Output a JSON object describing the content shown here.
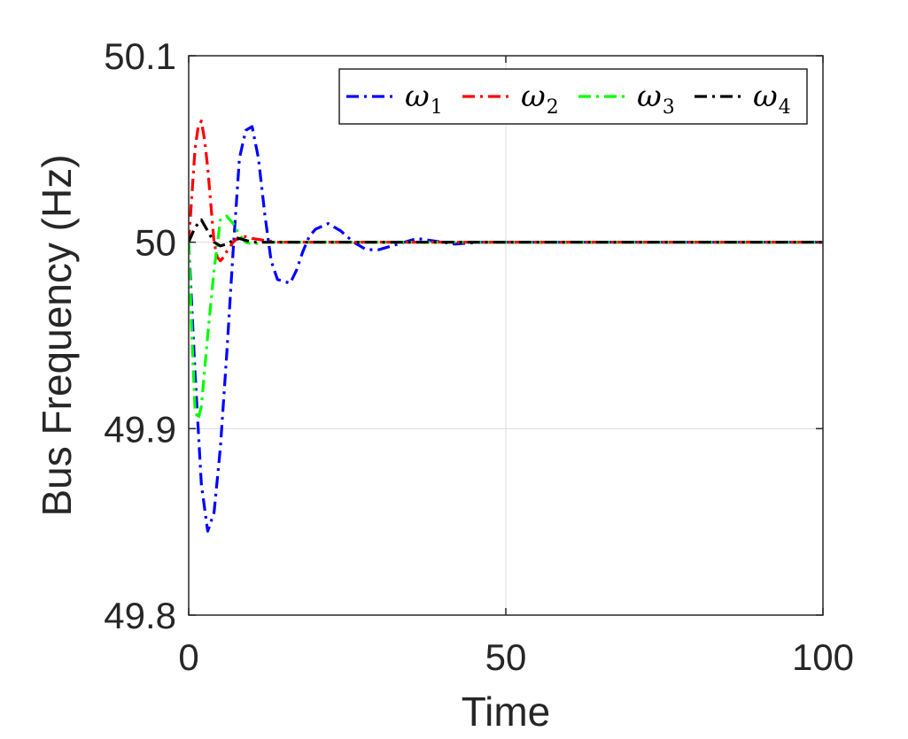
{
  "chart_data": {
    "type": "line",
    "title": "",
    "xlabel": "Time",
    "ylabel": "Bus Frequency (Hz)",
    "xlim": [
      0,
      100
    ],
    "ylim": [
      49.8,
      50.1
    ],
    "xticks": [
      0,
      50,
      100
    ],
    "xtick_labels": [
      "0",
      "50",
      "100"
    ],
    "yticks": [
      49.8,
      49.9,
      50,
      50.1
    ],
    "ytick_labels": [
      "49.8",
      "49.9",
      "50",
      "50.1"
    ],
    "grid": true,
    "legend_position": "top-right",
    "legend_orientation": "horizontal",
    "series": [
      {
        "name": "ω1",
        "name_base": "ω",
        "name_sub": "1",
        "color": "#0000ff",
        "dash": "dash-dot",
        "x": [
          0,
          1,
          2,
          3,
          4,
          5,
          6,
          7,
          8,
          9,
          10,
          11,
          12,
          13,
          14,
          15,
          16,
          17,
          18,
          19,
          20,
          22,
          24,
          26,
          28,
          30,
          32,
          34,
          36,
          38,
          40,
          42,
          44,
          46,
          48,
          50,
          60,
          70,
          80,
          90,
          100
        ],
        "y": [
          50,
          49.93,
          49.87,
          49.845,
          49.855,
          49.89,
          49.94,
          49.995,
          50.045,
          50.06,
          50.062,
          50.045,
          50.015,
          49.99,
          49.98,
          49.979,
          49.978,
          49.985,
          49.995,
          50.003,
          50.007,
          50.01,
          50.006,
          50.0,
          49.996,
          49.996,
          49.998,
          50.0,
          50.002,
          50.001,
          50.0,
          49.999,
          49.9995,
          50.0,
          50.0,
          50.0,
          50.0,
          50.0,
          50.0,
          50.0,
          50.0
        ]
      },
      {
        "name": "ω2",
        "name_base": "ω",
        "name_sub": "2",
        "color": "#ff0000",
        "dash": "dash-dot",
        "x": [
          0,
          0.5,
          1,
          1.5,
          2,
          2.5,
          3,
          3.5,
          4,
          4.5,
          5,
          5.5,
          6,
          7,
          8,
          9,
          10,
          12,
          14,
          16,
          20,
          30,
          40,
          50,
          60,
          70,
          80,
          90,
          100
        ],
        "y": [
          50,
          50.025,
          50.05,
          50.062,
          50.065,
          50.055,
          50.04,
          50.02,
          50.0,
          49.992,
          49.99,
          49.992,
          49.995,
          50.0,
          50.003,
          50.003,
          50.002,
          50.001,
          50.0,
          50.0,
          50.0,
          50.0,
          50.0,
          50.0,
          50.0,
          50.0,
          50.0,
          50.0,
          50.0
        ]
      },
      {
        "name": "ω3",
        "name_base": "ω",
        "name_sub": "3",
        "color": "#00ff00",
        "dash": "dash-dot",
        "x": [
          0,
          0.5,
          1,
          1.5,
          2,
          3,
          4,
          5,
          6,
          7,
          8,
          9,
          10,
          12,
          14,
          16,
          20,
          30,
          40,
          50,
          60,
          70,
          80,
          90,
          100
        ],
        "y": [
          50,
          49.95,
          49.91,
          49.905,
          49.912,
          49.95,
          49.985,
          50.012,
          50.014,
          50.01,
          50.004,
          50.0,
          49.999,
          50.0,
          50.0,
          50.0,
          50.0,
          50.0,
          50.0,
          50.0,
          50.0,
          50.0,
          50.0,
          50.0,
          50.0
        ]
      },
      {
        "name": "ω4",
        "name_base": "ω",
        "name_sub": "4",
        "color": "#000000",
        "dash": "dash-dot",
        "x": [
          0,
          1,
          2,
          3,
          4,
          5,
          6,
          7,
          8,
          9,
          10,
          12,
          14,
          16,
          20,
          30,
          40,
          50,
          60,
          70,
          80,
          90,
          100
        ],
        "y": [
          50,
          50.008,
          50.012,
          50.006,
          50.0,
          49.998,
          49.999,
          50.001,
          50.002,
          50.001,
          50.0,
          50.0,
          50.0,
          50.0,
          50.0,
          50.0,
          50.0,
          50.0,
          50.0,
          50.0,
          50.0,
          50.0,
          50.0
        ]
      }
    ]
  }
}
